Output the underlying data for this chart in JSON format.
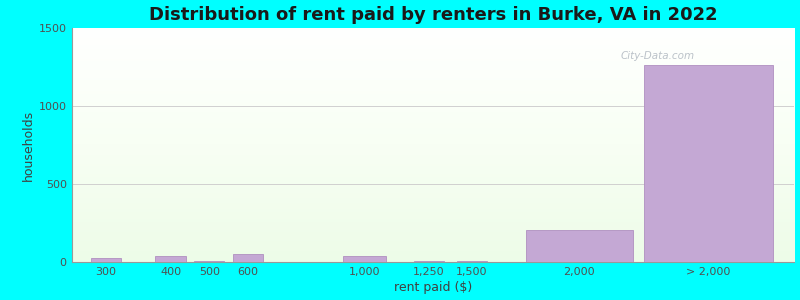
{
  "title": "Distribution of rent paid by renters in Burke, VA in 2022",
  "xlabel": "rent paid ($)",
  "ylabel": "households",
  "background_color": "#00FFFF",
  "bar_color": "#c4a8d4",
  "bar_edge_color": "#b090c0",
  "ylim": [
    0,
    1500
  ],
  "yticks": [
    0,
    500,
    1000,
    1500
  ],
  "xtick_labels": [
    "300",
    "400",
    "500",
    "600",
    "1,000",
    "1,250",
    "1,500",
    "2,000",
    "> 2,000"
  ],
  "values": [
    28,
    40,
    10,
    55,
    40,
    10,
    10,
    205,
    1265
  ],
  "bar_positions": [
    0.5,
    2.0,
    2.9,
    3.8,
    6.5,
    8.0,
    9.0,
    11.5,
    14.5
  ],
  "bar_widths": [
    0.7,
    0.7,
    0.7,
    0.7,
    1.0,
    0.7,
    0.7,
    2.5,
    3.0
  ],
  "tick_positions": [
    0.5,
    2.0,
    2.9,
    3.8,
    6.5,
    8.0,
    9.0,
    11.5,
    14.5
  ],
  "xlim": [
    -0.3,
    16.5
  ],
  "title_fontsize": 13,
  "axis_label_fontsize": 9,
  "tick_fontsize": 8,
  "grid_color": "#d0d0d0",
  "watermark": "City-Data.com"
}
